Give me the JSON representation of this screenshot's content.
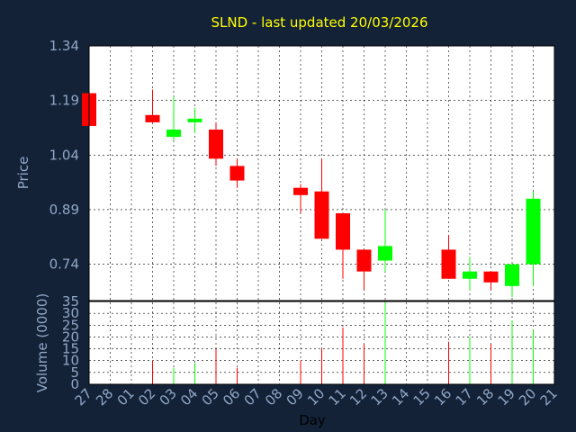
{
  "title": "SLND - last updated 20/03/2026",
  "xlabel": "Day",
  "colors": {
    "background": "#132237",
    "plot_bg": "#ffffff",
    "up": "#00ff00",
    "down": "#ff0000",
    "title": "#ffff00",
    "tick": "#8fa7c7",
    "grid": "#000000"
  },
  "chart_data": [
    {
      "type": "candlestick",
      "ylabel": "Price",
      "ylim": [
        0.64,
        1.34
      ],
      "yticks": [
        "1.34",
        "1.19",
        "1.04",
        "0.89",
        "0.74"
      ],
      "ytick_values": [
        1.34,
        1.19,
        1.04,
        0.89,
        0.74
      ],
      "grid": true,
      "categories": [
        "27",
        "28",
        "01",
        "02",
        "03",
        "04",
        "05",
        "06",
        "07",
        "08",
        "09",
        "10",
        "11",
        "12",
        "13",
        "14",
        "15",
        "16",
        "17",
        "18",
        "19",
        "20",
        "21"
      ],
      "candles": [
        {
          "x": "27",
          "open": 1.21,
          "close": 1.12,
          "high": 1.21,
          "low": 1.12
        },
        {
          "x": "02",
          "open": 1.15,
          "close": 1.13,
          "high": 1.22,
          "low": 1.13
        },
        {
          "x": "03",
          "open": 1.09,
          "close": 1.11,
          "high": 1.2,
          "low": 1.08
        },
        {
          "x": "04",
          "open": 1.13,
          "close": 1.14,
          "high": 1.17,
          "low": 1.1
        },
        {
          "x": "05",
          "open": 1.11,
          "close": 1.03,
          "high": 1.13,
          "low": 1.01
        },
        {
          "x": "06",
          "open": 1.01,
          "close": 0.97,
          "high": 1.03,
          "low": 0.95
        },
        {
          "x": "09",
          "open": 0.95,
          "close": 0.93,
          "high": 0.96,
          "low": 0.88
        },
        {
          "x": "10",
          "open": 0.94,
          "close": 0.81,
          "high": 1.03,
          "low": 0.81
        },
        {
          "x": "11",
          "open": 0.88,
          "close": 0.78,
          "high": 0.88,
          "low": 0.7
        },
        {
          "x": "12",
          "open": 0.78,
          "close": 0.72,
          "high": 0.78,
          "low": 0.67
        },
        {
          "x": "13",
          "open": 0.75,
          "close": 0.79,
          "high": 0.89,
          "low": 0.72
        },
        {
          "x": "16",
          "open": 0.78,
          "close": 0.7,
          "high": 0.82,
          "low": 0.7
        },
        {
          "x": "17",
          "open": 0.7,
          "close": 0.72,
          "high": 0.76,
          "low": 0.67
        },
        {
          "x": "18",
          "open": 0.72,
          "close": 0.69,
          "high": 0.72,
          "low": 0.67
        },
        {
          "x": "19",
          "open": 0.68,
          "close": 0.74,
          "high": 0.74,
          "low": 0.65
        },
        {
          "x": "20",
          "open": 0.74,
          "close": 0.92,
          "high": 0.94,
          "low": 0.68
        }
      ]
    },
    {
      "type": "bar",
      "ylabel": "Volume (0000)",
      "ylim": [
        0,
        35
      ],
      "yticks": [
        "35",
        "30",
        "25",
        "20",
        "15",
        "10",
        "5",
        "0"
      ],
      "ytick_values": [
        35,
        30,
        25,
        20,
        15,
        10,
        5,
        0
      ],
      "grid": true,
      "categories": [
        "27",
        "28",
        "01",
        "02",
        "03",
        "04",
        "05",
        "06",
        "07",
        "08",
        "09",
        "10",
        "11",
        "12",
        "13",
        "14",
        "15",
        "16",
        "17",
        "18",
        "19",
        "20",
        "21"
      ],
      "volumes": [
        {
          "x": "27",
          "value": 0.5,
          "direction": "down"
        },
        {
          "x": "02",
          "value": 10,
          "direction": "down"
        },
        {
          "x": "03",
          "value": 7,
          "direction": "up"
        },
        {
          "x": "04",
          "value": 9,
          "direction": "up"
        },
        {
          "x": "05",
          "value": 15,
          "direction": "down"
        },
        {
          "x": "06",
          "value": 7,
          "direction": "down"
        },
        {
          "x": "09",
          "value": 10,
          "direction": "down"
        },
        {
          "x": "10",
          "value": 15,
          "direction": "down"
        },
        {
          "x": "11",
          "value": 24,
          "direction": "down"
        },
        {
          "x": "12",
          "value": 17,
          "direction": "down"
        },
        {
          "x": "13",
          "value": 35,
          "direction": "up"
        },
        {
          "x": "16",
          "value": 18,
          "direction": "down"
        },
        {
          "x": "17",
          "value": 20,
          "direction": "up"
        },
        {
          "x": "18",
          "value": 17,
          "direction": "down"
        },
        {
          "x": "19",
          "value": 27,
          "direction": "up"
        },
        {
          "x": "20",
          "value": 23,
          "direction": "up"
        }
      ]
    }
  ]
}
